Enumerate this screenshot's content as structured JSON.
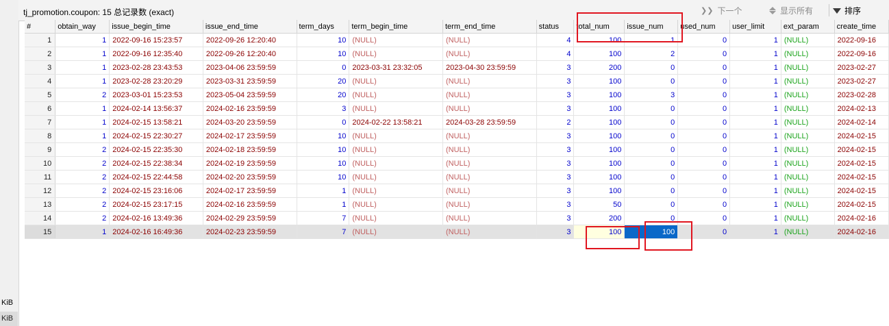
{
  "window": {
    "title": "tj_promotion.coupon: 15 总记录数 (exact)",
    "next_label": "下一个",
    "show_all_label": "显示所有",
    "sort_label": "排序"
  },
  "left_panel": {
    "unit1": "KiB",
    "unit2": "KiB"
  },
  "columns": [
    "#",
    "obtain_way",
    "issue_begin_time",
    "issue_end_time",
    "term_days",
    "term_begin_time",
    "term_end_time",
    "status",
    "total_num",
    "issue_num",
    "used_num",
    "user_limit",
    "ext_param",
    "create_time"
  ],
  "null_text": "(NULL)",
  "rows": [
    [
      "1",
      "1",
      "2022-09-16 15:23:57",
      "2022-09-26 12:20:40",
      "10",
      "(NULL)",
      "(NULL)",
      "4",
      "100",
      "1",
      "0",
      "1",
      "(NULL)",
      "2022-09-16"
    ],
    [
      "2",
      "1",
      "2022-09-16 12:35:40",
      "2022-09-26 12:20:40",
      "10",
      "(NULL)",
      "(NULL)",
      "4",
      "100",
      "2",
      "0",
      "1",
      "(NULL)",
      "2022-09-16"
    ],
    [
      "3",
      "1",
      "2023-02-28 23:43:53",
      "2023-04-06 23:59:59",
      "0",
      "2023-03-31 23:32:05",
      "2023-04-30 23:59:59",
      "3",
      "200",
      "0",
      "0",
      "1",
      "(NULL)",
      "2023-02-27"
    ],
    [
      "4",
      "1",
      "2023-02-28 23:20:29",
      "2023-03-31 23:59:59",
      "20",
      "(NULL)",
      "(NULL)",
      "3",
      "100",
      "0",
      "0",
      "1",
      "(NULL)",
      "2023-02-27"
    ],
    [
      "5",
      "2",
      "2023-03-01 15:23:53",
      "2023-05-04 23:59:59",
      "20",
      "(NULL)",
      "(NULL)",
      "3",
      "100",
      "3",
      "0",
      "1",
      "(NULL)",
      "2023-02-28"
    ],
    [
      "6",
      "1",
      "2024-02-14 13:56:37",
      "2024-02-16 23:59:59",
      "3",
      "(NULL)",
      "(NULL)",
      "3",
      "100",
      "0",
      "0",
      "1",
      "(NULL)",
      "2024-02-13"
    ],
    [
      "7",
      "1",
      "2024-02-15 13:58:21",
      "2024-03-20 23:59:59",
      "0",
      "2024-02-22 13:58:21",
      "2024-03-28 23:59:59",
      "2",
      "100",
      "0",
      "0",
      "1",
      "(NULL)",
      "2024-02-14"
    ],
    [
      "8",
      "1",
      "2024-02-15 22:30:27",
      "2024-02-17 23:59:59",
      "10",
      "(NULL)",
      "(NULL)",
      "3",
      "100",
      "0",
      "0",
      "1",
      "(NULL)",
      "2024-02-15"
    ],
    [
      "9",
      "2",
      "2024-02-15 22:35:30",
      "2024-02-18 23:59:59",
      "10",
      "(NULL)",
      "(NULL)",
      "3",
      "100",
      "0",
      "0",
      "1",
      "(NULL)",
      "2024-02-15"
    ],
    [
      "10",
      "2",
      "2024-02-15 22:38:34",
      "2024-02-19 23:59:59",
      "10",
      "(NULL)",
      "(NULL)",
      "3",
      "100",
      "0",
      "0",
      "1",
      "(NULL)",
      "2024-02-15"
    ],
    [
      "11",
      "2",
      "2024-02-15 22:44:58",
      "2024-02-20 23:59:59",
      "10",
      "(NULL)",
      "(NULL)",
      "3",
      "100",
      "0",
      "0",
      "1",
      "(NULL)",
      "2024-02-15"
    ],
    [
      "12",
      "2",
      "2024-02-15 23:16:06",
      "2024-02-17 23:59:59",
      "1",
      "(NULL)",
      "(NULL)",
      "3",
      "100",
      "0",
      "0",
      "1",
      "(NULL)",
      "2024-02-15"
    ],
    [
      "13",
      "2",
      "2024-02-15 23:17:15",
      "2024-02-16 23:59:59",
      "1",
      "(NULL)",
      "(NULL)",
      "3",
      "50",
      "0",
      "0",
      "1",
      "(NULL)",
      "2024-02-15"
    ],
    [
      "14",
      "2",
      "2024-02-16 13:49:36",
      "2024-02-29 23:59:59",
      "7",
      "(NULL)",
      "(NULL)",
      "3",
      "200",
      "0",
      "0",
      "1",
      "(NULL)",
      "2024-02-16"
    ],
    [
      "15",
      "1",
      "2024-02-16 16:49:36",
      "2024-02-23 23:59:59",
      "7",
      "(NULL)",
      "(NULL)",
      "3",
      "100",
      "100",
      "0",
      "1",
      "(NULL)",
      "2024-02-16"
    ]
  ],
  "selected_row": 15,
  "colors": {
    "highlight": "#e0141e",
    "cursor": "#0a68c8",
    "number": "#0000cc",
    "datetime": "#8b0000",
    "null_green": "#1aa31a"
  }
}
